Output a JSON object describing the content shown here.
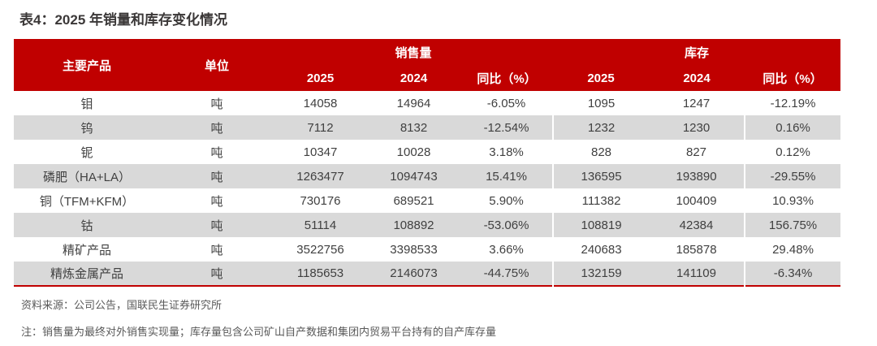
{
  "title": "表4：2025 年销量和库存变化情况",
  "table": {
    "headers": {
      "product": "主要产品",
      "unit": "单位",
      "sales_group": "销售量",
      "inventory_group": "库存",
      "y2025": "2025",
      "y2024": "2024",
      "yoy": "同比（%）"
    },
    "rows": [
      {
        "product": "钼",
        "unit": "吨",
        "s2025": "14058",
        "s2024": "14964",
        "syoy": "-6.05%",
        "i2025": "1095",
        "i2024": "1247",
        "iyoy": "-12.19%"
      },
      {
        "product": "钨",
        "unit": "吨",
        "s2025": "7112",
        "s2024": "8132",
        "syoy": "-12.54%",
        "i2025": "1232",
        "i2024": "1230",
        "iyoy": "0.16%"
      },
      {
        "product": "铌",
        "unit": "吨",
        "s2025": "10347",
        "s2024": "10028",
        "syoy": "3.18%",
        "i2025": "828",
        "i2024": "827",
        "iyoy": "0.12%"
      },
      {
        "product": "磷肥（HA+LA）",
        "unit": "吨",
        "s2025": "1263477",
        "s2024": "1094743",
        "syoy": "15.41%",
        "i2025": "136595",
        "i2024": "193890",
        "iyoy": "-29.55%"
      },
      {
        "product": "铜（TFM+KFM）",
        "unit": "吨",
        "s2025": "730176",
        "s2024": "689521",
        "syoy": "5.90%",
        "i2025": "111382",
        "i2024": "100409",
        "iyoy": "10.93%"
      },
      {
        "product": "钴",
        "unit": "吨",
        "s2025": "51114",
        "s2024": "108892",
        "syoy": "-53.06%",
        "i2025": "108819",
        "i2024": "42384",
        "iyoy": "156.75%"
      },
      {
        "product": "精矿产品",
        "unit": "吨",
        "s2025": "3522756",
        "s2024": "3398533",
        "syoy": "3.66%",
        "i2025": "240683",
        "i2024": "185878",
        "iyoy": "29.48%"
      },
      {
        "product": "精炼金属产品",
        "unit": "吨",
        "s2025": "1185653",
        "s2024": "2146073",
        "syoy": "-44.75%",
        "i2025": "132159",
        "i2024": "141109",
        "iyoy": "-6.34%"
      }
    ]
  },
  "footer": {
    "source": "资料来源：公司公告，国联民生证券研究所",
    "note": "注：销售量为最终对外销售实现量；库存量包含公司矿山自产数据和集团内贸易平台持有的自产库存量"
  },
  "colors": {
    "header_bg": "#c00000",
    "header_text": "#ffffff",
    "stripe_bg": "#d9d9d9",
    "cell_text": "#404040",
    "bottom_border": "#c00000",
    "footnote_text": "#595959",
    "title_text": "#3b3838"
  }
}
